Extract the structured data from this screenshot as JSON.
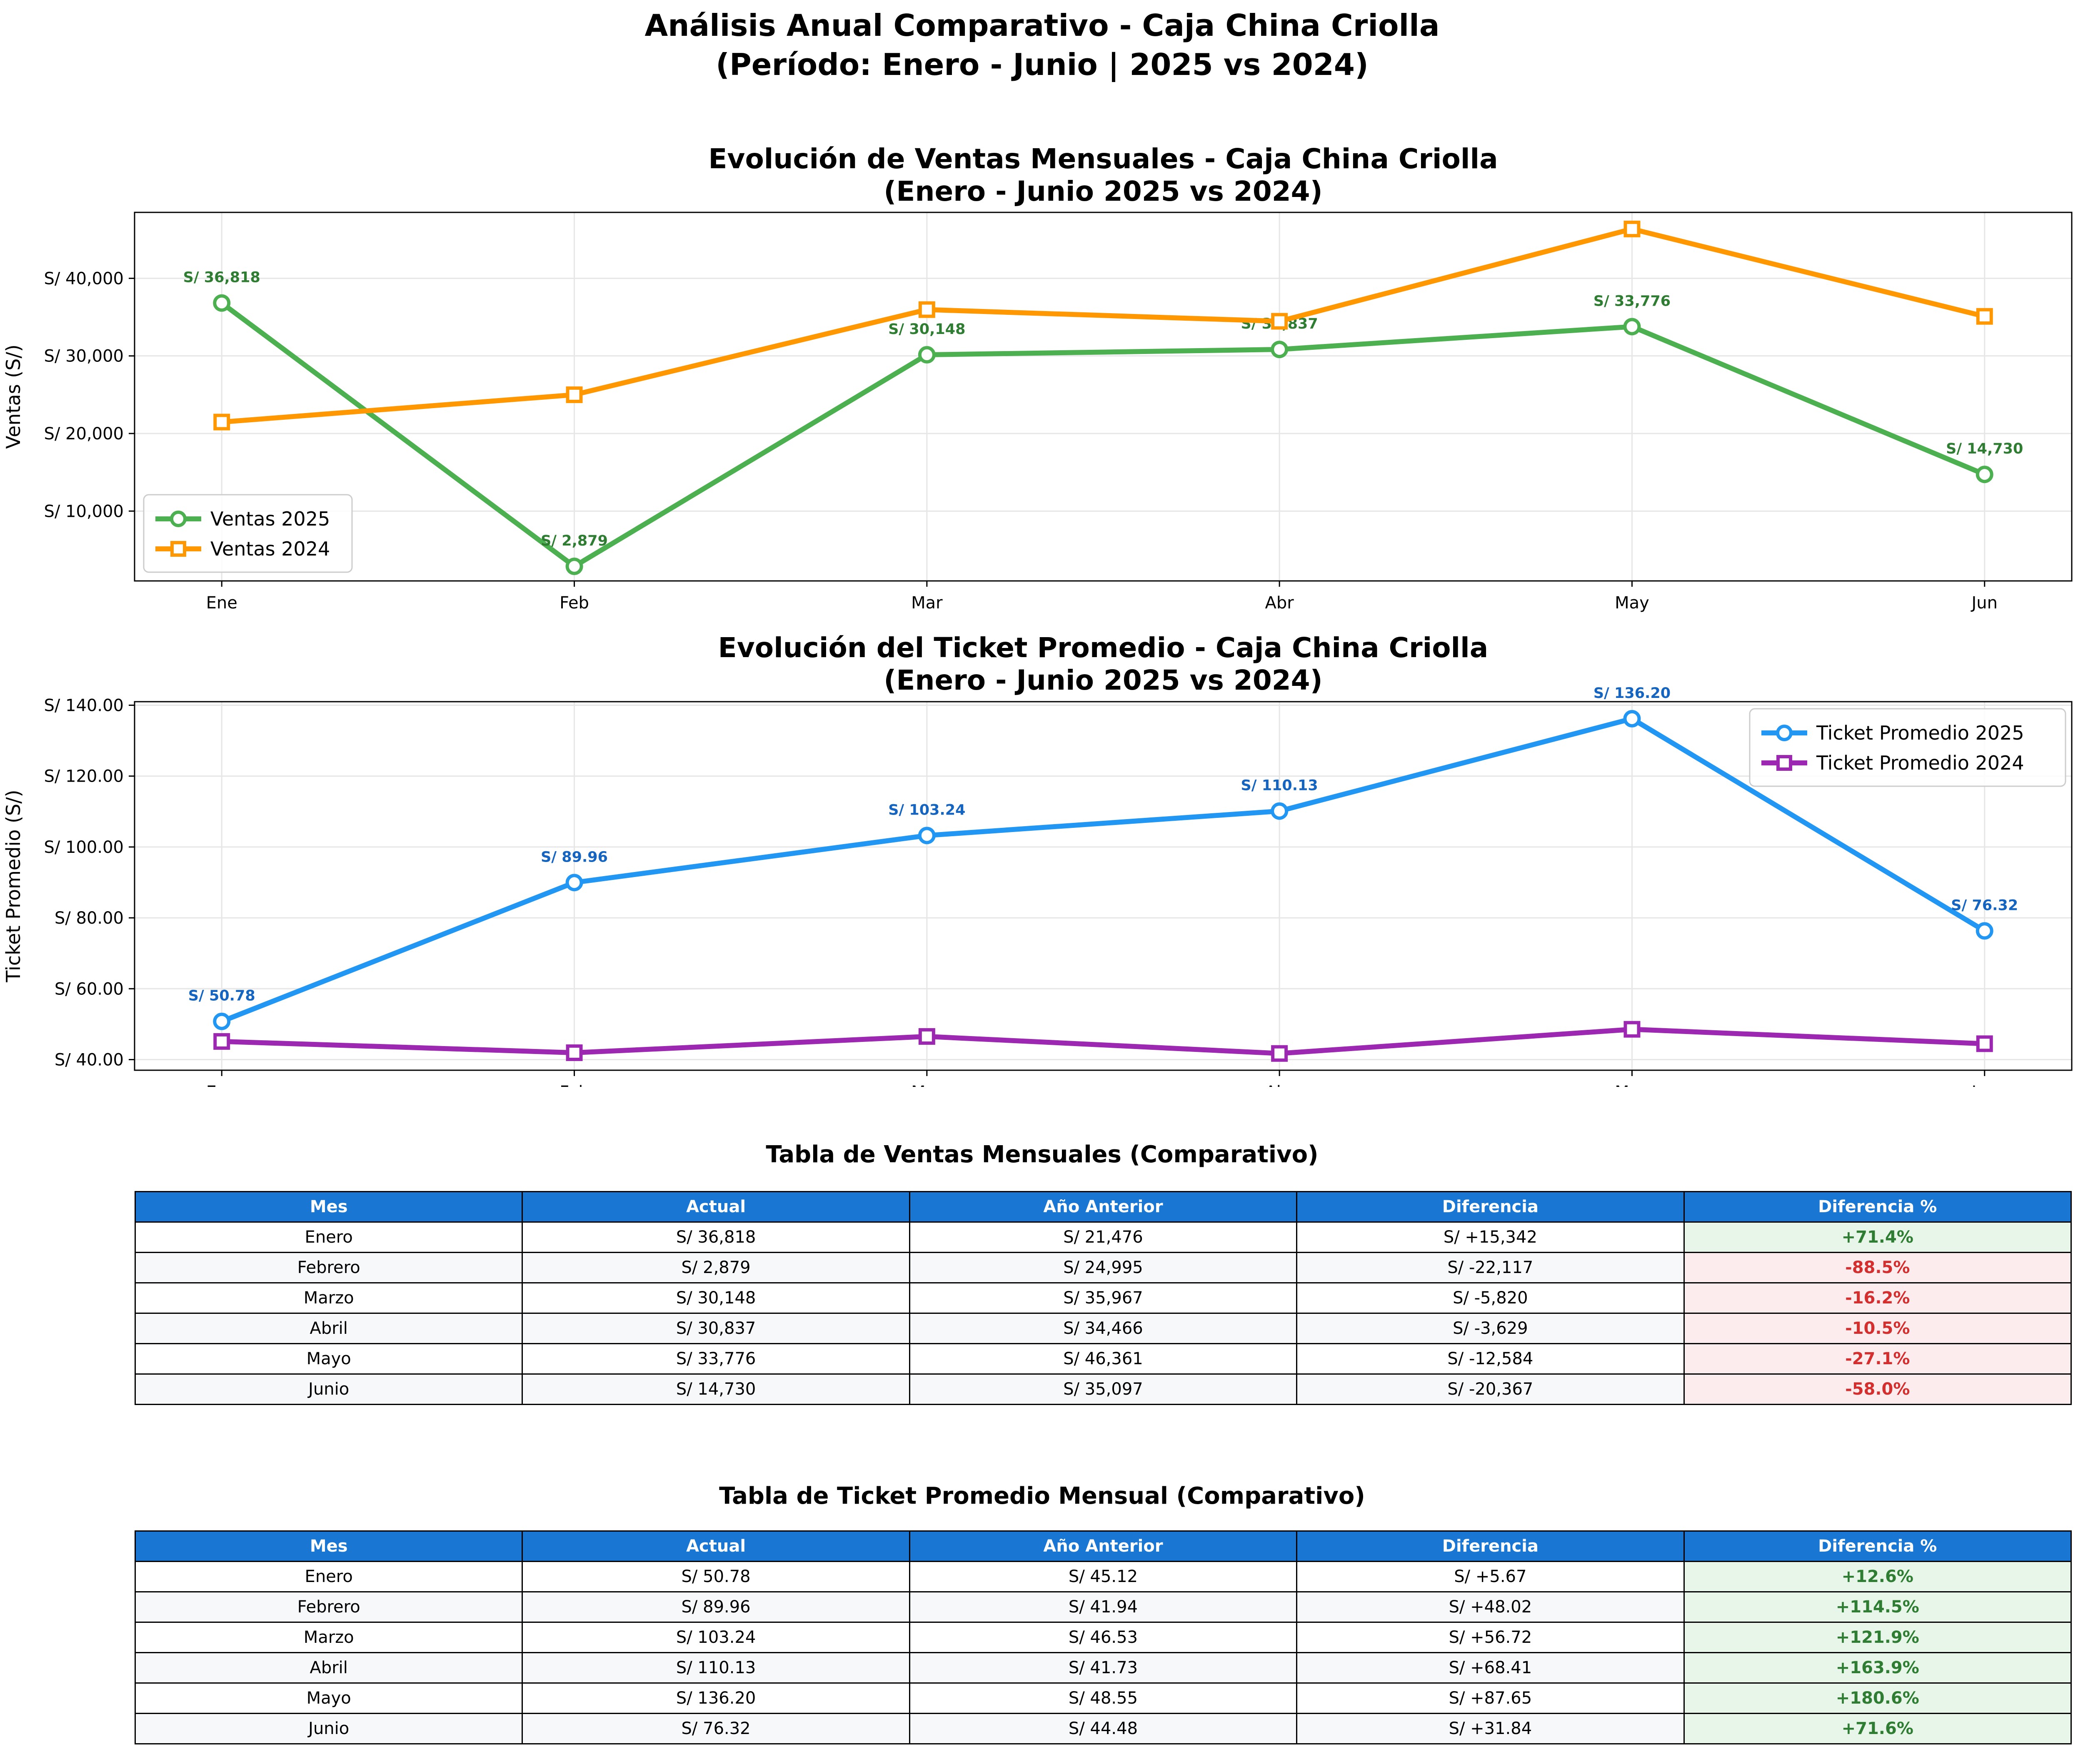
{
  "title_line1": "Análisis Anual Comparativo - Caja China Criolla",
  "title_line2": "(Período: Enero - Junio | 2025 vs 2024)",
  "chart_data": [
    {
      "type": "line",
      "title_line1": "Evolución de Ventas Mensuales - Caja China Criolla",
      "title_line2": "(Enero - Junio 2025 vs 2024)",
      "ylabel": "Ventas (S/)",
      "categories": [
        "Ene",
        "Feb",
        "Mar",
        "Abr",
        "May",
        "Jun"
      ],
      "ylim": [
        1000,
        48500
      ],
      "yticks": [
        10000,
        20000,
        30000,
        40000
      ],
      "ytick_labels": [
        "S/ 10,000",
        "S/ 20,000",
        "S/ 30,000",
        "S/ 40,000"
      ],
      "grid": true,
      "legend": "lower left",
      "series": [
        {
          "name": "Ventas 2025",
          "values": [
            36818,
            2879,
            30148,
            30837,
            33776,
            14730
          ],
          "color": "#4caf50",
          "marker": "circle",
          "labels": [
            "S/ 36,818",
            "S/ 2,879",
            "S/ 30,148",
            "S/ 30,837",
            "S/ 33,776",
            "S/ 14,730"
          ],
          "label_color": "#2e7d32"
        },
        {
          "name": "Ventas 2024",
          "values": [
            21476,
            24995,
            35967,
            34466,
            46361,
            35097
          ],
          "color": "#ff9800",
          "marker": "square"
        }
      ]
    },
    {
      "type": "line",
      "title_line1": "Evolución del Ticket Promedio - Caja China Criolla",
      "title_line2": "(Enero - Junio 2025 vs 2024)",
      "ylabel": "Ticket Promedio (S/)",
      "categories": [
        "Ene",
        "Feb",
        "Mar",
        "Abr",
        "May",
        "Jun"
      ],
      "ylim": [
        37,
        141
      ],
      "yticks": [
        40,
        60,
        80,
        100,
        120,
        140
      ],
      "ytick_labels": [
        "S/ 40.00",
        "S/ 60.00",
        "S/ 80.00",
        "S/ 100.00",
        "S/ 120.00",
        "S/ 140.00"
      ],
      "grid": true,
      "legend": "upper right",
      "series": [
        {
          "name": "Ticket Promedio 2025",
          "values": [
            50.78,
            89.96,
            103.24,
            110.13,
            136.2,
            76.32
          ],
          "color": "#2196f3",
          "marker": "circle",
          "labels": [
            "S/ 50.78",
            "S/ 89.96",
            "S/ 103.24",
            "S/ 110.13",
            "S/ 136.20",
            "S/ 76.32"
          ],
          "label_color": "#1565c0"
        },
        {
          "name": "Ticket Promedio 2024",
          "values": [
            45.12,
            41.94,
            46.53,
            41.73,
            48.55,
            44.48
          ],
          "color": "#9c27b0",
          "marker": "square"
        }
      ]
    },
    {
      "type": "table",
      "title": "Tabla de Ventas Mensuales (Comparativo)",
      "columns": [
        "Mes",
        "Actual",
        "Año Anterior",
        "Diferencia",
        "Diferencia %"
      ],
      "rows": [
        {
          "cells": [
            "Enero",
            "S/ 36,818",
            "S/ 21,476",
            "S/ +15,342",
            "+71.4%"
          ],
          "sign": "pos"
        },
        {
          "cells": [
            "Febrero",
            "S/ 2,879",
            "S/ 24,995",
            "S/ -22,117",
            "-88.5%"
          ],
          "sign": "neg"
        },
        {
          "cells": [
            "Marzo",
            "S/ 30,148",
            "S/ 35,967",
            "S/ -5,820",
            "-16.2%"
          ],
          "sign": "neg"
        },
        {
          "cells": [
            "Abril",
            "S/ 30,837",
            "S/ 34,466",
            "S/ -3,629",
            "-10.5%"
          ],
          "sign": "neg"
        },
        {
          "cells": [
            "Mayo",
            "S/ 33,776",
            "S/ 46,361",
            "S/ -12,584",
            "-27.1%"
          ],
          "sign": "neg"
        },
        {
          "cells": [
            "Junio",
            "S/ 14,730",
            "S/ 35,097",
            "S/ -20,367",
            "-58.0%"
          ],
          "sign": "neg"
        }
      ]
    },
    {
      "type": "table",
      "title": "Tabla de Ticket Promedio Mensual (Comparativo)",
      "columns": [
        "Mes",
        "Actual",
        "Año Anterior",
        "Diferencia",
        "Diferencia %"
      ],
      "rows": [
        {
          "cells": [
            "Enero",
            "S/ 50.78",
            "S/ 45.12",
            "S/ +5.67",
            "+12.6%"
          ],
          "sign": "pos"
        },
        {
          "cells": [
            "Febrero",
            "S/ 89.96",
            "S/ 41.94",
            "S/ +48.02",
            "+114.5%"
          ],
          "sign": "pos"
        },
        {
          "cells": [
            "Marzo",
            "S/ 103.24",
            "S/ 46.53",
            "S/ +56.72",
            "+121.9%"
          ],
          "sign": "pos"
        },
        {
          "cells": [
            "Abril",
            "S/ 110.13",
            "S/ 41.73",
            "S/ +68.41",
            "+163.9%"
          ],
          "sign": "pos"
        },
        {
          "cells": [
            "Mayo",
            "S/ 136.20",
            "S/ 48.55",
            "S/ +87.65",
            "+180.6%"
          ],
          "sign": "pos"
        },
        {
          "cells": [
            "Junio",
            "S/ 76.32",
            "S/ 44.48",
            "S/ +31.84",
            "+71.6%"
          ],
          "sign": "pos"
        }
      ]
    }
  ]
}
